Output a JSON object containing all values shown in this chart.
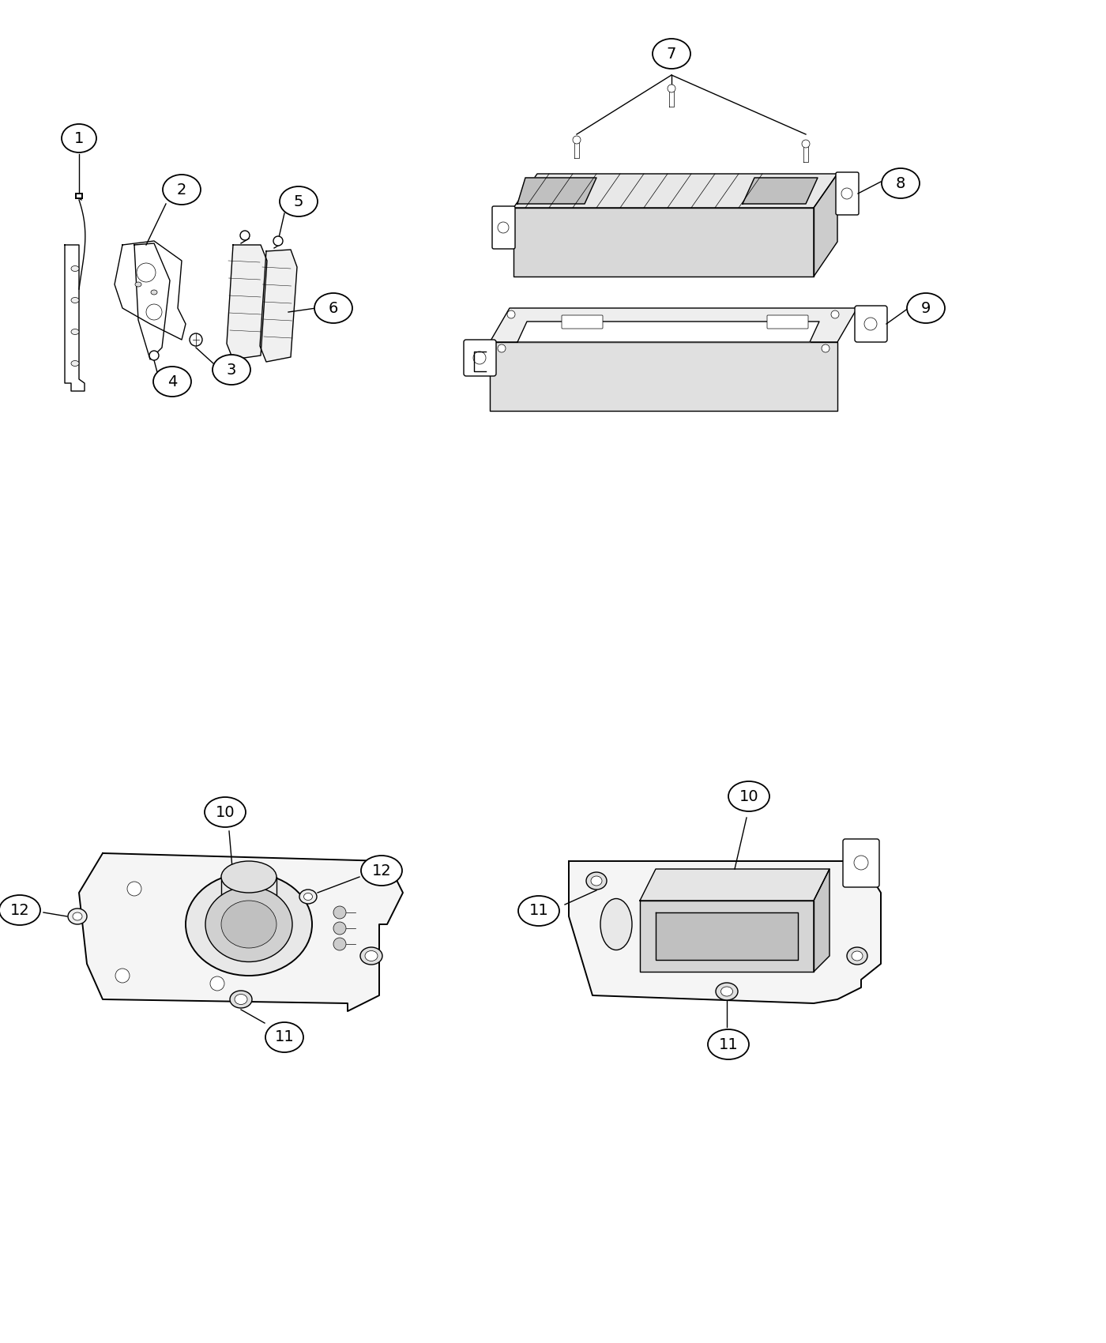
{
  "background_color": "#ffffff",
  "line_color": "#000000",
  "fig_width": 14.0,
  "fig_height": 17.0,
  "dpi": 100,
  "lw": 1.0,
  "lw_thin": 0.5,
  "lw_thick": 1.4
}
